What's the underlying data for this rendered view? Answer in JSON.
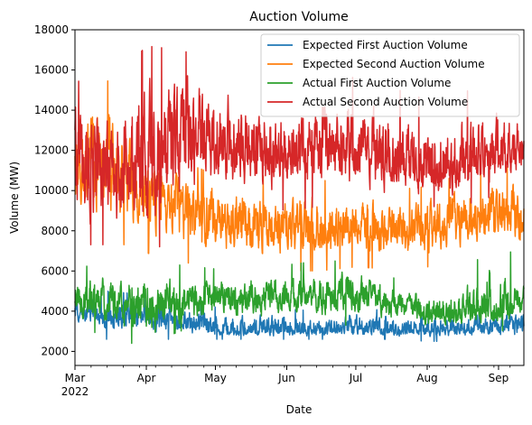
{
  "chart_data": {
    "type": "line",
    "title": "Auction Volume",
    "xlabel": "Date",
    "ylabel": "Volume (MW)",
    "ylim": [
      1300,
      18000
    ],
    "xlim": [
      "2022-03-01",
      "2022-09-12"
    ],
    "x_ticks": [
      {
        "date": "2022-03-01",
        "label": "Mar",
        "sublabel": "2022"
      },
      {
        "date": "2022-04-01",
        "label": "Apr",
        "sublabel": ""
      },
      {
        "date": "2022-05-01",
        "label": "May",
        "sublabel": ""
      },
      {
        "date": "2022-06-01",
        "label": "Jun",
        "sublabel": ""
      },
      {
        "date": "2022-07-01",
        "label": "Jul",
        "sublabel": ""
      },
      {
        "date": "2022-08-01",
        "label": "Aug",
        "sublabel": ""
      },
      {
        "date": "2022-09-01",
        "label": "Sep",
        "sublabel": ""
      }
    ],
    "y_ticks": [
      2000,
      4000,
      6000,
      8000,
      10000,
      12000,
      14000,
      16000,
      18000
    ],
    "grid": false,
    "legend_position": "top-right",
    "x_sample_dates": [
      "2022-03-01",
      "2022-03-15",
      "2022-04-01",
      "2022-04-15",
      "2022-05-01",
      "2022-05-15",
      "2022-06-01",
      "2022-06-15",
      "2022-07-01",
      "2022-07-15",
      "2022-08-01",
      "2022-08-15",
      "2022-09-01",
      "2022-09-12"
    ],
    "series": [
      {
        "name": "Expected First Auction Volume",
        "color": "#1f77b4",
        "values": [
          4000,
          3800,
          3700,
          3500,
          3100,
          3000,
          3100,
          3000,
          3200,
          3100,
          3000,
          3100,
          3300,
          3400
        ],
        "noise_min": [
          2800,
          2600,
          2600,
          2600,
          2600,
          2600,
          2600,
          2600,
          2600,
          2600,
          2500,
          2500,
          2500,
          2500
        ],
        "noise_max": [
          5000,
          5000,
          4800,
          4500,
          4200,
          4300,
          4100,
          4000,
          4200,
          4000,
          4000,
          4000,
          4200,
          4300
        ]
      },
      {
        "name": "Expected Second Auction Volume",
        "color": "#ff7f0e",
        "values": [
          11000,
          11000,
          10000,
          9500,
          8200,
          8500,
          8000,
          8200,
          8200,
          7900,
          8000,
          8500,
          8800,
          9000
        ],
        "noise_min": [
          7600,
          7600,
          6900,
          6500,
          6100,
          6200,
          6000,
          6000,
          6200,
          6100,
          6200,
          6500,
          6600,
          6600
        ],
        "noise_max": [
          15500,
          15500,
          12500,
          11500,
          10800,
          10900,
          10500,
          10500,
          10500,
          10000,
          10200,
          10800,
          11000,
          11500
        ]
      },
      {
        "name": "Actual First Auction Volume",
        "color": "#2ca02c",
        "values": [
          4500,
          4500,
          4200,
          4400,
          4600,
          4600,
          4600,
          4800,
          4800,
          4500,
          3900,
          4000,
          4200,
          4400
        ],
        "noise_min": [
          3000,
          2900,
          2100,
          3000,
          3200,
          3200,
          3200,
          3300,
          3300,
          3300,
          2900,
          2900,
          3000,
          3200
        ],
        "noise_max": [
          6200,
          6300,
          6200,
          6300,
          6100,
          6200,
          6300,
          6500,
          6500,
          5700,
          5400,
          5500,
          7800,
          6000
        ]
      },
      {
        "name": "Actual Second Auction Volume",
        "color": "#d62728",
        "values": [
          11500,
          11000,
          11500,
          13000,
          12200,
          11800,
          11800,
          12200,
          12000,
          11500,
          11000,
          11200,
          11800,
          12500
        ],
        "noise_min": [
          7300,
          7300,
          6300,
          8500,
          9500,
          9300,
          9000,
          9200,
          9200,
          9200,
          9200,
          9200,
          9800,
          10500
        ],
        "noise_max": [
          15500,
          15000,
          17200,
          17000,
          16500,
          15200,
          14800,
          16000,
          15600,
          15200,
          14500,
          15000,
          14800,
          14500
        ]
      }
    ]
  }
}
